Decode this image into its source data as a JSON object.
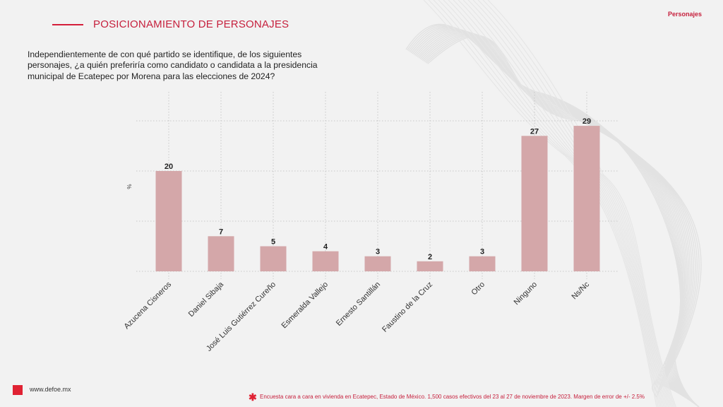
{
  "header": {
    "title": "POSICIONAMIENTO DE PERSONAJES",
    "section_tag": "Personajes"
  },
  "question": "Independientemente de con qué partido se identifique, de los siguientes personajes, ¿a quién preferiría como candidato o candidata a la presidencia municipal de Ecatepec por Morena para las elecciones de 2024?",
  "footer": {
    "url": "www.defoe.mx",
    "note_icon": "asterisk-icon",
    "note": "Encuesta cara a cara en vivienda en Ecatepec, Estado de México. 1,500 casos efectivos del 23 al 27 de noviembre de 2023. Margen de error de +/- 2.5%"
  },
  "colors": {
    "accent": "#c6203d",
    "bar": "#d4a7a9",
    "grid": "#c8c8c8"
  },
  "chart_data": {
    "type": "bar",
    "title": "",
    "xlabel": "",
    "ylabel": "%",
    "ylim": [
      0,
      30
    ],
    "yticks": [
      0,
      10,
      20,
      30
    ],
    "grid": true,
    "legend": "none",
    "categories": [
      "Azucena Cisneros",
      "Daniel Sibaja",
      "José Luis Gutiérrez Cureño",
      "Esmeralda Vallejo",
      "Ernesto Santillán",
      "Faustino de la Cruz",
      "Otro",
      "Ninguno",
      "Ns/Nc"
    ],
    "values": [
      20,
      7,
      5,
      4,
      3,
      2,
      3,
      27,
      29
    ]
  }
}
